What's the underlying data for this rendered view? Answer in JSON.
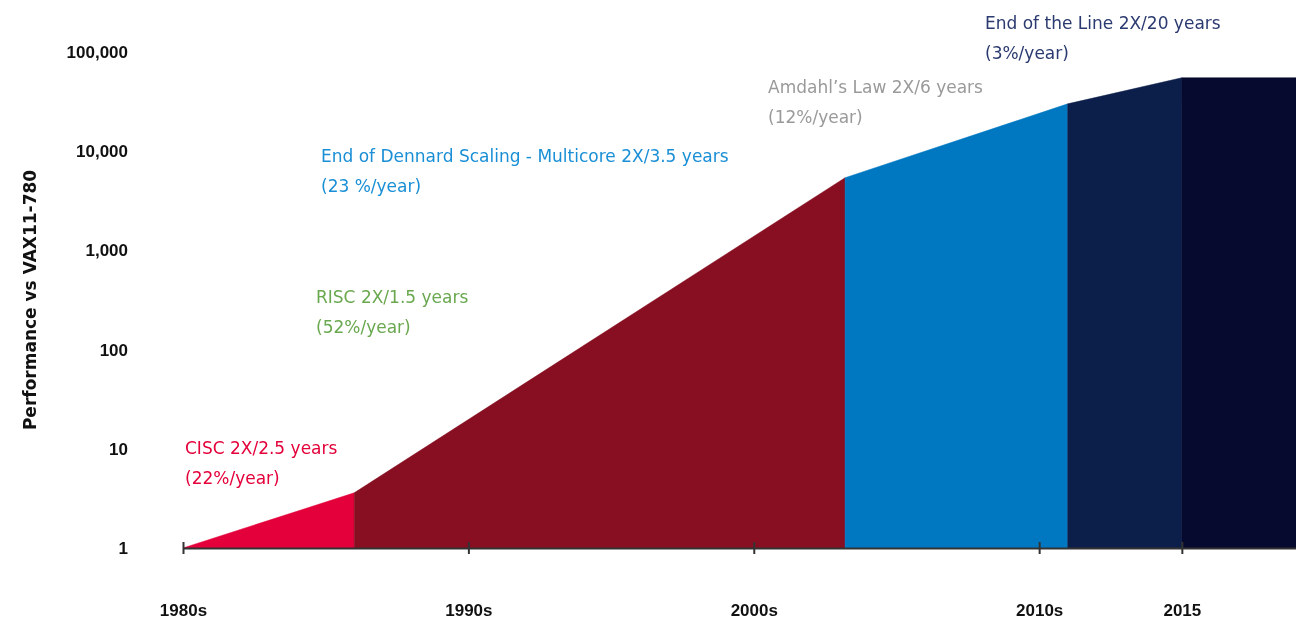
{
  "chart_data": {
    "type": "area",
    "ylabel": "Performance vs VAX11-780",
    "log": "y",
    "grid": false,
    "xlim": [
      1980,
      2019
    ],
    "xticks": [
      {
        "value": 1980,
        "label": "1980s"
      },
      {
        "value": 1990,
        "label": "1990s"
      },
      {
        "value": 2000,
        "label": "2000s"
      },
      {
        "value": 2010,
        "label": "2010s"
      },
      2015
    ],
    "ylim": [
      1,
      100000
    ],
    "yticks": [
      {
        "value": 1,
        "label": "1"
      },
      {
        "value": 10,
        "label": "10"
      },
      {
        "value": 100,
        "label": "100"
      },
      {
        "value": 1000,
        "label": "1,000"
      },
      {
        "value": 10000,
        "label": "10,000"
      },
      {
        "value": 100000,
        "label": "100,000"
      }
    ],
    "series": [
      {
        "color": "#e4003a",
        "x": [
          1980,
          1986
        ],
        "values": [
          1,
          3.6
        ]
      },
      {
        "color": "#870f21",
        "x": [
          1986,
          2003.2
        ],
        "values": [
          3.6,
          5400
        ]
      },
      {
        "color": "#0078c1",
        "x": [
          2003.2,
          2011
        ],
        "values": [
          5400,
          30000
        ]
      },
      {
        "color": "#0c1f4a",
        "x": [
          2011,
          2015
        ],
        "values": [
          30000,
          55000
        ]
      },
      {
        "color": "#060a2e",
        "x": [
          2015,
          2019
        ],
        "values": [
          55000,
          55000
        ]
      }
    ],
    "annotations": [
      "CISC 2X/2.5 years\n(22%/year)",
      "RISC 2X/1.5 years\n(52%/year)",
      "End of Dennard Scaling - Multicore 2X/3.5 years\n(23 %/year)",
      "Amdahl’s Law 2X/6 years\n(12%/year)",
      "End of the Line 2X/20 years\n(3%/year)"
    ]
  }
}
